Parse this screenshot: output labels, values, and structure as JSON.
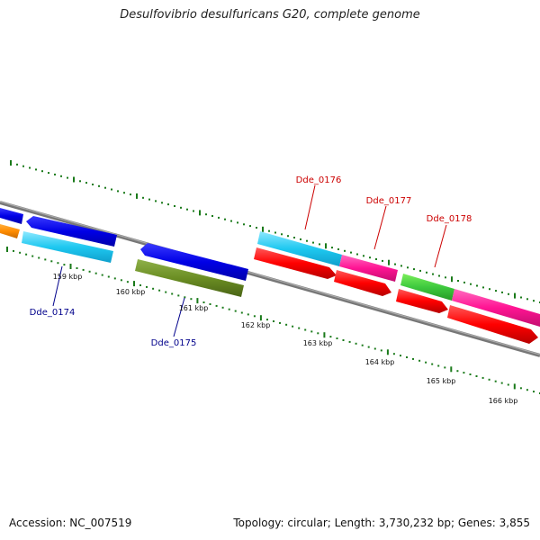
{
  "title": "Desulfovibrio desulfuricans G20, complete genome",
  "footer": {
    "accession": "Accession: NC_007519",
    "stats": "Topology: circular; Length: 3,730,232 bp; Genes: 3,855"
  },
  "ruler": [
    "159 kbp",
    "160 kbp",
    "161 kbp",
    "162 kbp",
    "163 kbp",
    "164 kbp",
    "165 kbp",
    "166 kbp"
  ],
  "gene_labels": {
    "dde_0174": "Dde_0174",
    "dde_0175": "Dde_0175",
    "dde_0176": "Dde_0176",
    "dde_0177": "Dde_0177",
    "dde_0178": "Dde_0178"
  },
  "colors": {
    "reverse_label": "#00008b",
    "forward_label": "#cc0000",
    "tick": "#1a7a1a",
    "backbone": "#808080"
  }
}
